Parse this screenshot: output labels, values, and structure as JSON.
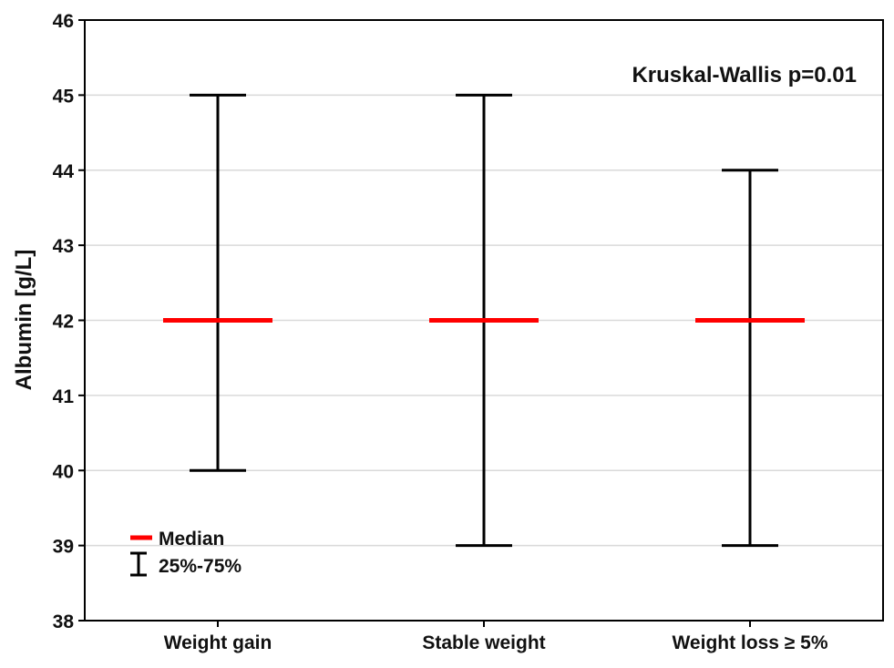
{
  "chart_data": {
    "type": "box",
    "ylabel": "Albumin [g/L]",
    "ylim": [
      38,
      46
    ],
    "yticks": [
      38,
      39,
      40,
      41,
      42,
      43,
      44,
      45,
      46
    ],
    "grid": true,
    "categories": [
      "Weight gain",
      "Stable weight",
      "Weight loss ≥ 5%"
    ],
    "series": [
      {
        "category": "Weight gain",
        "median": 42,
        "q1": 40,
        "q3": 45
      },
      {
        "category": "Stable weight",
        "median": 42,
        "q1": 39,
        "q3": 45
      },
      {
        "category": "Weight loss ≥ 5%",
        "median": 42,
        "q1": 39,
        "q3": 44
      }
    ],
    "annotation": "Kruskal-Wallis p=0.01",
    "legend": {
      "position": "bottom-left",
      "items": [
        {
          "label": "Median",
          "symbol": "line",
          "color": "#ff0000"
        },
        {
          "label": "25%-75%",
          "symbol": "errorbar",
          "color": "#000000"
        }
      ]
    },
    "colors": {
      "median": "#ff0000",
      "range": "#000000",
      "grid": "#d9d9d9"
    }
  }
}
